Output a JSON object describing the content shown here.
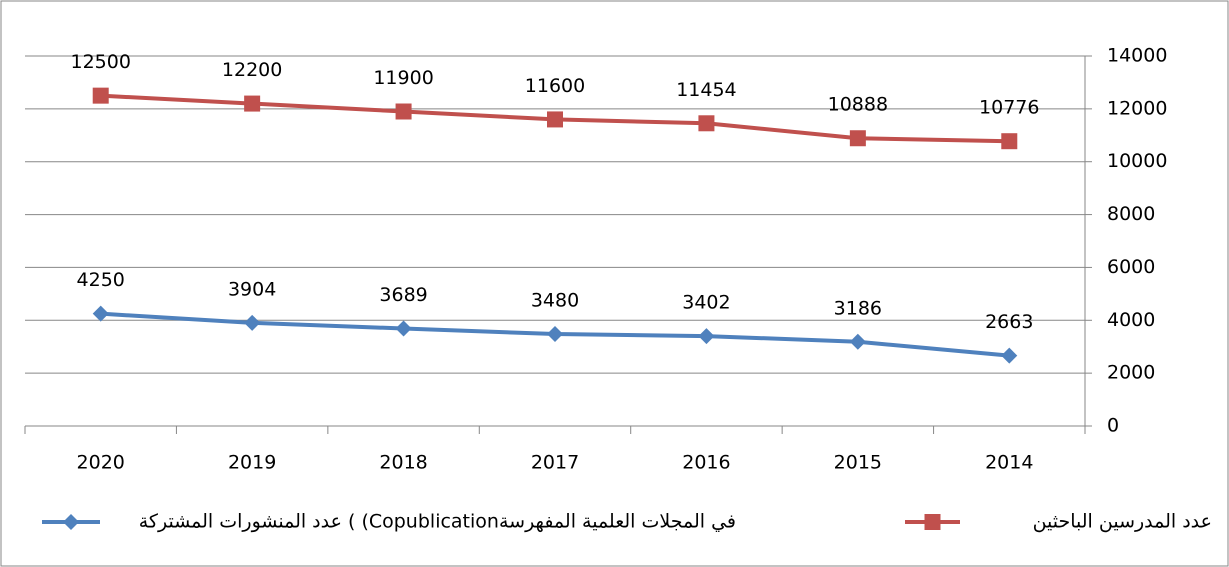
{
  "chart_data": {
    "type": "line",
    "categories": [
      "2020",
      "2019",
      "2018",
      "2017",
      "2016",
      "2015",
      "2014"
    ],
    "series": [
      {
        "name": "عدد المدرسين الباحثين",
        "color": "#c0504d",
        "marker": "square",
        "values": [
          12500,
          12200,
          11900,
          11600,
          11454,
          10888,
          10776
        ]
      },
      {
        "name": "عدد المنشورات المشتركة ( (Copublicationفي المجلات العلمية المفهرسة",
        "color": "#4f81bd",
        "marker": "diamond",
        "values": [
          4250,
          3904,
          3689,
          3480,
          3402,
          3186,
          2663
        ]
      }
    ],
    "ylim": [
      0,
      14000
    ],
    "yticks": [
      0,
      2000,
      4000,
      6000,
      8000,
      10000,
      12000,
      14000
    ],
    "grid": true,
    "yaxis_side": "right",
    "legend": "bottom"
  }
}
